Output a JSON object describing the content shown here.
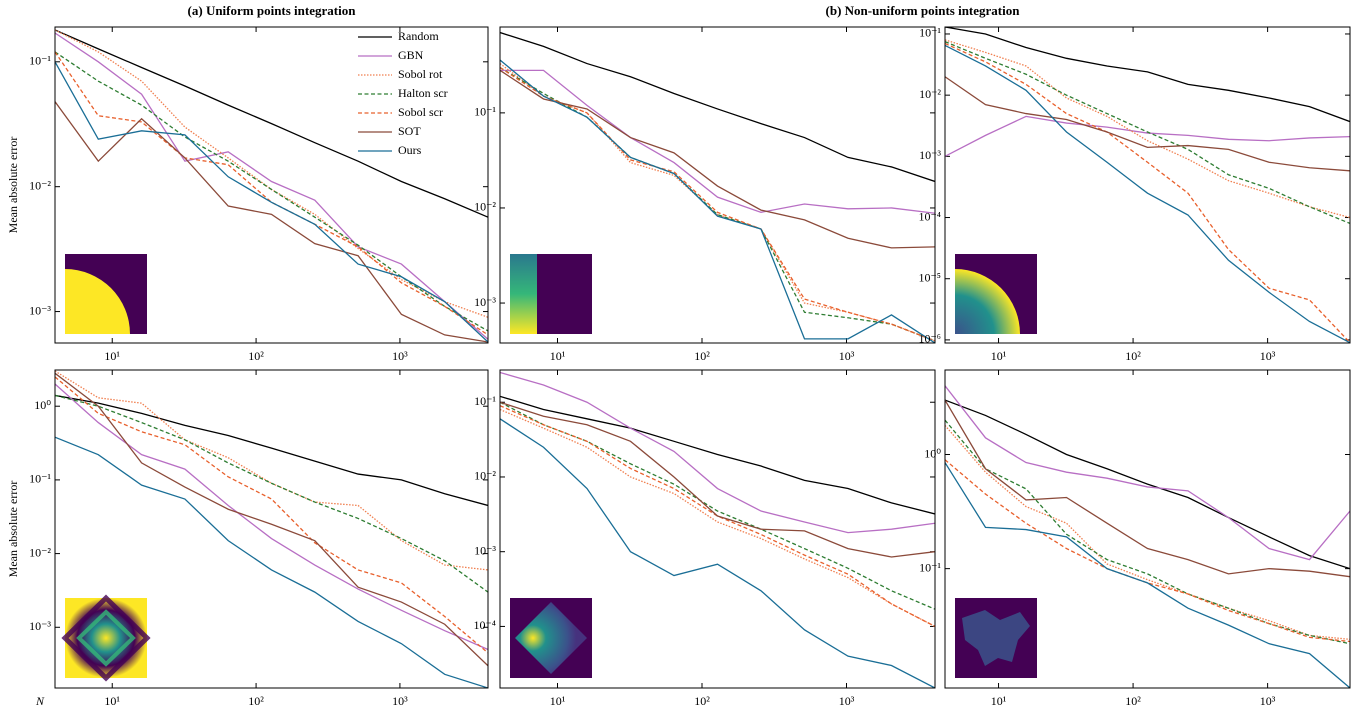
{
  "chart_data": [
    {
      "type": "line",
      "title": "(a) Uniform points integration",
      "ylabel": "Mean absolute error",
      "xscale": "log",
      "yscale": "log",
      "legend": "upper right",
      "x": [
        4,
        8,
        16,
        32,
        64,
        128,
        256,
        512,
        1024,
        2048,
        4096
      ],
      "xlim": [
        4,
        4096
      ],
      "xticks": [
        {
          "value": 10,
          "label": "10¹"
        },
        {
          "value": 100,
          "label": "10²"
        },
        {
          "value": 1000,
          "label": "10³"
        }
      ],
      "ylim": [
        0.00056,
        0.19
      ],
      "yticks": [
        {
          "value": 0.001,
          "label": "10⁻³"
        },
        {
          "value": 0.01,
          "label": "10⁻²"
        },
        {
          "value": 0.1,
          "label": "10⁻¹"
        }
      ],
      "series": [
        {
          "name": "Random",
          "color": "#000000",
          "dash": "solid",
          "values": [
            0.18,
            0.127,
            0.09,
            0.064,
            0.045,
            0.032,
            0.0225,
            0.016,
            0.011,
            0.008,
            0.0057
          ]
        },
        {
          "name": "GBN",
          "color": "#b86fc4",
          "dash": "solid",
          "values": [
            0.17,
            0.1,
            0.055,
            0.016,
            0.019,
            0.011,
            0.0078,
            0.0033,
            0.0024,
            0.0012,
            0.0006
          ]
        },
        {
          "name": "Sobol rot",
          "color": "#f07f4f",
          "dash": "dotted",
          "values": [
            0.18,
            0.12,
            0.07,
            0.03,
            0.017,
            0.0095,
            0.006,
            0.0032,
            0.0018,
            0.0012,
            0.0009
          ]
        },
        {
          "name": "Halton scr",
          "color": "#2e7d32",
          "dash": "dashed",
          "values": [
            0.12,
            0.07,
            0.045,
            0.025,
            0.016,
            0.0095,
            0.0057,
            0.0034,
            0.0019,
            0.0011,
            0.0007
          ]
        },
        {
          "name": "Sobol scr",
          "color": "#e8602c",
          "dash": "dashed",
          "values": [
            0.12,
            0.037,
            0.033,
            0.017,
            0.015,
            0.0075,
            0.005,
            0.0033,
            0.0017,
            0.0011,
            0.00065
          ]
        },
        {
          "name": "SOT",
          "color": "#8b4a3a",
          "dash": "solid",
          "values": [
            0.048,
            0.016,
            0.035,
            0.017,
            0.007,
            0.006,
            0.0035,
            0.0028,
            0.00095,
            0.00065,
            0.00057
          ]
        },
        {
          "name": "Ours",
          "color": "#1a6e96",
          "dash": "solid",
          "values": [
            0.1,
            0.024,
            0.028,
            0.026,
            0.012,
            0.0075,
            0.005,
            0.0024,
            0.0019,
            0.0012,
            0.00057
          ]
        }
      ]
    },
    {
      "type": "line",
      "title": "(b) Non-uniform points integration",
      "xscale": "log",
      "yscale": "log",
      "x": [
        4,
        8,
        16,
        32,
        64,
        128,
        256,
        512,
        1024,
        2048,
        4096
      ],
      "xlim": [
        4,
        4096
      ],
      "xticks": [
        {
          "value": 10,
          "label": "10¹"
        },
        {
          "value": 100,
          "label": "10²"
        },
        {
          "value": 1000,
          "label": "10³"
        }
      ],
      "ylim": [
        0.00038,
        0.8
      ],
      "yticks": [
        {
          "value": 0.001,
          "label": "10⁻³"
        },
        {
          "value": 0.01,
          "label": "10⁻²"
        },
        {
          "value": 0.1,
          "label": "10⁻¹"
        }
      ],
      "series": [
        {
          "color": "#000000",
          "dash": "solid",
          "values": [
            0.7,
            0.5,
            0.33,
            0.24,
            0.16,
            0.11,
            0.077,
            0.055,
            0.034,
            0.027,
            0.019
          ]
        },
        {
          "color": "#b86fc4",
          "dash": "solid",
          "values": [
            0.28,
            0.28,
            0.12,
            0.055,
            0.03,
            0.013,
            0.009,
            0.011,
            0.0098,
            0.01,
            0.0088
          ]
        },
        {
          "color": "#f07f4f",
          "dash": "dotted",
          "values": [
            0.33,
            0.15,
            0.1,
            0.03,
            0.022,
            0.0085,
            0.006,
            0.001,
            0.0008,
            0.0006,
            0.0004
          ]
        },
        {
          "color": "#2e7d32",
          "dash": "dashed",
          "values": [
            0.3,
            0.16,
            0.09,
            0.034,
            0.023,
            0.0085,
            0.006,
            0.0008,
            0.0007,
            0.0006,
            0.0004
          ]
        },
        {
          "color": "#e8602c",
          "dash": "dashed",
          "values": [
            0.3,
            0.15,
            0.1,
            0.032,
            0.024,
            0.009,
            0.006,
            0.0011,
            0.0008,
            0.0006,
            0.0004
          ]
        },
        {
          "color": "#8b4a3a",
          "dash": "solid",
          "values": [
            0.28,
            0.14,
            0.11,
            0.055,
            0.038,
            0.017,
            0.0095,
            0.0075,
            0.0048,
            0.0038,
            0.0039
          ]
        },
        {
          "color": "#1a6e96",
          "dash": "solid",
          "values": [
            0.36,
            0.15,
            0.09,
            0.034,
            0.023,
            0.0082,
            0.006,
            0.00042,
            0.00042,
            0.00075,
            0.00038
          ]
        }
      ]
    },
    {
      "type": "line",
      "xscale": "log",
      "yscale": "log",
      "x": [
        4,
        8,
        16,
        32,
        64,
        128,
        256,
        512,
        1024,
        2048,
        4096
      ],
      "xlim": [
        4,
        4096
      ],
      "xticks": [
        {
          "value": 10,
          "label": "10¹"
        },
        {
          "value": 100,
          "label": "10²"
        },
        {
          "value": 1000,
          "label": "10³"
        }
      ],
      "ylim": [
        8.9e-07,
        0.13
      ],
      "yticks": [
        {
          "value": 1e-06,
          "label": "10⁻⁶"
        },
        {
          "value": 1e-05,
          "label": "10⁻⁵"
        },
        {
          "value": 0.0001,
          "label": "10⁻⁴"
        },
        {
          "value": 0.001,
          "label": "10⁻³"
        },
        {
          "value": 0.01,
          "label": "10⁻²"
        },
        {
          "value": 0.1,
          "label": "10⁻¹"
        }
      ],
      "series": [
        {
          "color": "#000000",
          "dash": "solid",
          "values": [
            0.13,
            0.1,
            0.06,
            0.04,
            0.03,
            0.024,
            0.015,
            0.012,
            0.009,
            0.0065,
            0.0037
          ]
        },
        {
          "color": "#b86fc4",
          "dash": "solid",
          "values": [
            0.001,
            0.0022,
            0.0045,
            0.0035,
            0.003,
            0.0024,
            0.0022,
            0.0019,
            0.0018,
            0.002,
            0.0021
          ]
        },
        {
          "color": "#f07f4f",
          "dash": "dotted",
          "values": [
            0.08,
            0.05,
            0.03,
            0.009,
            0.0045,
            0.0018,
            0.0009,
            0.0004,
            0.00025,
            0.00015,
            0.0001
          ]
        },
        {
          "color": "#2e7d32",
          "dash": "dashed",
          "values": [
            0.075,
            0.04,
            0.022,
            0.01,
            0.005,
            0.0025,
            0.0013,
            0.0005,
            0.0003,
            0.00015,
            8e-05
          ]
        },
        {
          "color": "#e8602c",
          "dash": "dashed",
          "values": [
            0.07,
            0.035,
            0.015,
            0.005,
            0.0025,
            0.0008,
            0.00025,
            3e-05,
            7e-06,
            4.5e-06,
            9e-07
          ]
        },
        {
          "color": "#8b4a3a",
          "dash": "solid",
          "values": [
            0.02,
            0.007,
            0.005,
            0.004,
            0.0025,
            0.0014,
            0.0015,
            0.0013,
            0.0008,
            0.00065,
            0.00058
          ]
        },
        {
          "color": "#1a6e96",
          "dash": "solid",
          "values": [
            0.065,
            0.03,
            0.012,
            0.0025,
            0.0008,
            0.00025,
            0.00011,
            2e-05,
            6e-06,
            2e-06,
            9e-07
          ]
        }
      ]
    },
    {
      "type": "line",
      "ylabel": "Mean absolute error",
      "xlabel": "N",
      "xscale": "log",
      "yscale": "log",
      "x": [
        4,
        8,
        16,
        32,
        64,
        128,
        256,
        512,
        1024,
        2048,
        4096
      ],
      "xlim": [
        4,
        4096
      ],
      "xticks": [
        {
          "value": 10,
          "label": "10¹"
        },
        {
          "value": 100,
          "label": "10²"
        },
        {
          "value": 1000,
          "label": "10³"
        }
      ],
      "ylim": [
        0.00015,
        3.1
      ],
      "yticks": [
        {
          "value": 0.001,
          "label": "10⁻³"
        },
        {
          "value": 0.01,
          "label": "10⁻²"
        },
        {
          "value": 0.1,
          "label": "10⁻¹"
        },
        {
          "value": 1,
          "label": "10⁰"
        }
      ],
      "series": [
        {
          "color": "#000000",
          "dash": "solid",
          "values": [
            1.4,
            1.1,
            0.8,
            0.55,
            0.4,
            0.27,
            0.18,
            0.12,
            0.1,
            0.065,
            0.045
          ]
        },
        {
          "color": "#b86fc4",
          "dash": "solid",
          "values": [
            2.0,
            0.6,
            0.22,
            0.14,
            0.045,
            0.016,
            0.007,
            0.0033,
            0.0017,
            0.0009,
            0.0005
          ]
        },
        {
          "color": "#f07f4f",
          "dash": "dotted",
          "values": [
            3.0,
            1.3,
            1.1,
            0.35,
            0.2,
            0.09,
            0.05,
            0.045,
            0.015,
            0.007,
            0.006
          ]
        },
        {
          "color": "#2e7d32",
          "dash": "dashed",
          "values": [
            1.4,
            1.0,
            0.6,
            0.35,
            0.17,
            0.09,
            0.05,
            0.03,
            0.016,
            0.008,
            0.003
          ]
        },
        {
          "color": "#e8602c",
          "dash": "dashed",
          "values": [
            2.5,
            0.8,
            0.45,
            0.3,
            0.11,
            0.055,
            0.014,
            0.006,
            0.004,
            0.0014,
            0.00045
          ]
        },
        {
          "color": "#8b4a3a",
          "dash": "solid",
          "values": [
            2.8,
            1.0,
            0.17,
            0.08,
            0.04,
            0.025,
            0.015,
            0.0035,
            0.0022,
            0.0011,
            0.0003
          ]
        },
        {
          "color": "#1a6e96",
          "dash": "solid",
          "values": [
            0.38,
            0.22,
            0.085,
            0.055,
            0.015,
            0.006,
            0.003,
            0.0012,
            0.0006,
            0.00023,
            0.00015
          ]
        }
      ]
    },
    {
      "type": "line",
      "xscale": "log",
      "yscale": "log",
      "x": [
        4,
        8,
        16,
        32,
        64,
        128,
        256,
        512,
        1024,
        2048,
        4096
      ],
      "xlim": [
        4,
        4096
      ],
      "xticks": [
        {
          "value": 10,
          "label": "10¹"
        },
        {
          "value": 100,
          "label": "10²"
        },
        {
          "value": 1000,
          "label": "10³"
        }
      ],
      "ylim": [
        1.5e-05,
        0.27
      ],
      "yticks": [
        {
          "value": 0.0001,
          "label": "10⁻⁴"
        },
        {
          "value": 0.001,
          "label": "10⁻³"
        },
        {
          "value": 0.01,
          "label": "10⁻²"
        },
        {
          "value": 0.1,
          "label": "10⁻¹"
        }
      ],
      "series": [
        {
          "color": "#000000",
          "dash": "solid",
          "values": [
            0.12,
            0.08,
            0.06,
            0.045,
            0.03,
            0.02,
            0.014,
            0.009,
            0.007,
            0.0045,
            0.0032
          ]
        },
        {
          "color": "#b86fc4",
          "dash": "solid",
          "values": [
            0.25,
            0.17,
            0.1,
            0.045,
            0.022,
            0.007,
            0.0035,
            0.0025,
            0.0018,
            0.002,
            0.0024
          ]
        },
        {
          "color": "#f07f4f",
          "dash": "dotted",
          "values": [
            0.08,
            0.045,
            0.025,
            0.01,
            0.006,
            0.0025,
            0.0015,
            0.0008,
            0.00045,
            0.0002,
            0.0001
          ]
        },
        {
          "color": "#2e7d32",
          "dash": "dashed",
          "values": [
            0.1,
            0.05,
            0.03,
            0.015,
            0.008,
            0.0035,
            0.002,
            0.0011,
            0.0006,
            0.0003,
            0.00017
          ]
        },
        {
          "color": "#e8602c",
          "dash": "dashed",
          "values": [
            0.09,
            0.05,
            0.03,
            0.013,
            0.007,
            0.003,
            0.0017,
            0.0009,
            0.0005,
            0.0002,
            0.0001
          ]
        },
        {
          "color": "#8b4a3a",
          "dash": "solid",
          "values": [
            0.1,
            0.065,
            0.05,
            0.03,
            0.01,
            0.003,
            0.002,
            0.0019,
            0.0011,
            0.00085,
            0.001
          ]
        },
        {
          "color": "#1a6e96",
          "dash": "solid",
          "values": [
            0.06,
            0.025,
            0.007,
            0.001,
            0.00048,
            0.00068,
            0.0003,
            9e-05,
            4e-05,
            3e-05,
            1.5e-05
          ]
        }
      ]
    },
    {
      "type": "line",
      "xscale": "log",
      "yscale": "log",
      "x": [
        4,
        8,
        16,
        32,
        64,
        128,
        256,
        512,
        1024,
        2048,
        4096
      ],
      "xlim": [
        4,
        4096
      ],
      "xticks": [
        {
          "value": 10,
          "label": "10¹"
        },
        {
          "value": 100,
          "label": "10²"
        },
        {
          "value": 1000,
          "label": "10³"
        }
      ],
      "ylim": [
        0.009,
        5.5
      ],
      "yticks": [
        {
          "value": 0.1,
          "label": "10⁻¹"
        },
        {
          "value": 1,
          "label": "10⁰"
        }
      ],
      "series": [
        {
          "color": "#000000",
          "dash": "solid",
          "values": [
            3.0,
            2.2,
            1.5,
            1.0,
            0.75,
            0.55,
            0.42,
            0.28,
            0.19,
            0.13,
            0.1
          ]
        },
        {
          "color": "#b86fc4",
          "dash": "solid",
          "values": [
            4.0,
            1.4,
            0.85,
            0.7,
            0.62,
            0.52,
            0.48,
            0.28,
            0.15,
            0.12,
            0.32
          ]
        },
        {
          "color": "#f07f4f",
          "dash": "dotted",
          "values": [
            1.8,
            0.7,
            0.35,
            0.25,
            0.11,
            0.08,
            0.06,
            0.045,
            0.035,
            0.026,
            0.024
          ]
        },
        {
          "color": "#2e7d32",
          "dash": "dashed",
          "values": [
            2.0,
            0.75,
            0.5,
            0.2,
            0.12,
            0.09,
            0.06,
            0.045,
            0.033,
            0.026,
            0.022
          ]
        },
        {
          "color": "#e8602c",
          "dash": "dashed",
          "values": [
            0.9,
            0.45,
            0.25,
            0.15,
            0.1,
            0.075,
            0.06,
            0.043,
            0.033,
            0.025,
            0.023
          ]
        },
        {
          "color": "#8b4a3a",
          "dash": "solid",
          "values": [
            3.0,
            0.75,
            0.4,
            0.42,
            0.25,
            0.15,
            0.12,
            0.09,
            0.1,
            0.095,
            0.085
          ]
        },
        {
          "color": "#1a6e96",
          "dash": "solid",
          "values": [
            0.85,
            0.23,
            0.22,
            0.19,
            0.1,
            0.075,
            0.045,
            0.032,
            0.022,
            0.018,
            0.009
          ]
        }
      ]
    }
  ]
}
